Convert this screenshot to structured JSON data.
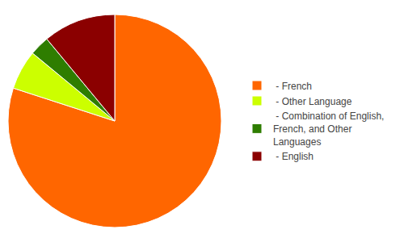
{
  "chart_data": {
    "type": "pie",
    "categories": [
      " - French",
      " - Other Language",
      " - Combination of English,\nFrench, and Other\nLanguages",
      " - English"
    ],
    "values": [
      80,
      6,
      3,
      11
    ],
    "colors": [
      "#FF6600",
      "#CCFF00",
      "#2E7D00",
      "#8B0000"
    ],
    "legend": "right"
  }
}
